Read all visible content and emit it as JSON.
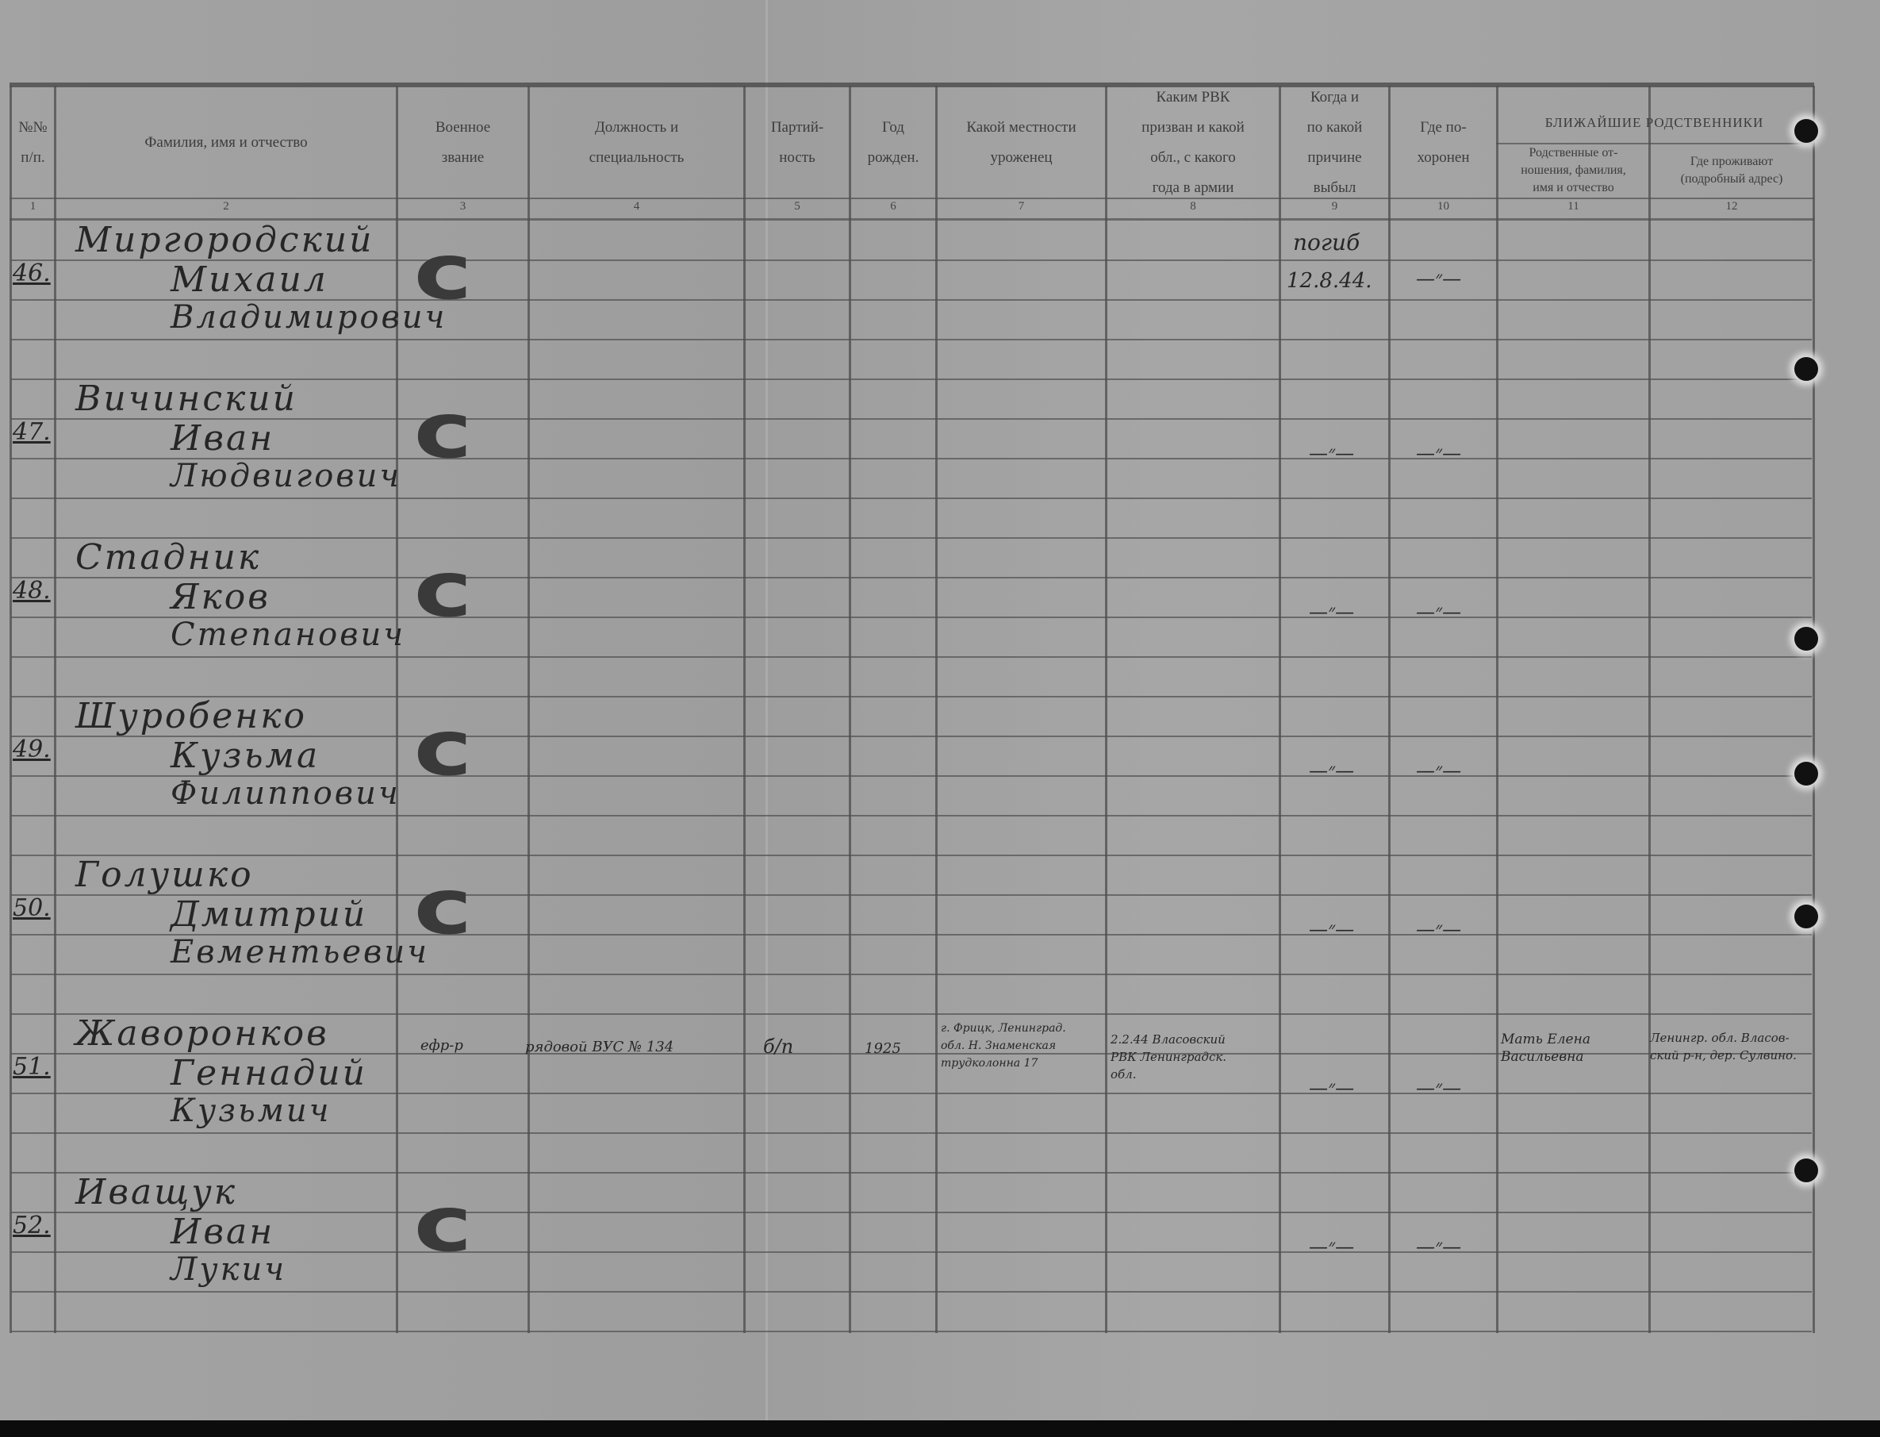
{
  "headers": [
    {
      "label": "№№\nп/п.",
      "num": "1"
    },
    {
      "label": "Фамилия, имя и отчество",
      "num": "2"
    },
    {
      "label": "Военное\nзвание",
      "num": "3"
    },
    {
      "label": "Должность и\nспециальность",
      "num": "4"
    },
    {
      "label": "Партий-\nность",
      "num": "5"
    },
    {
      "label": "Год\nрожден.",
      "num": "6"
    },
    {
      "label": "Какой местности\nуроженец",
      "num": "7"
    },
    {
      "label": "Каким РВК\nпризван и какой\nобл., с какого\nгода в армии",
      "num": "8"
    },
    {
      "label": "Когда и\nпо какой\nпричине\nвыбыл",
      "num": "9"
    },
    {
      "label": "Где по-\nхоронен",
      "num": "10"
    },
    {
      "label": "Родственные от-\nношения, фамилия,\nимя и отчество",
      "num": "11"
    },
    {
      "label": "Где проживают\n(подробный адрес)",
      "num": "12"
    }
  ],
  "group_header": "БЛИЖАЙШИЕ РОДСТВЕННИКИ",
  "rows": [
    {
      "no": "46.",
      "surname": "Миргородский",
      "name": "Михаил",
      "patronymic": "Владимирович",
      "rank": "с",
      "when": "погиб",
      "date": "12.8.44.",
      "buried": "—״—"
    },
    {
      "no": "47.",
      "surname": "Вичинский",
      "name": "Иван",
      "patronymic": "Людвигович",
      "rank": "с",
      "when": "—״—",
      "buried": "—״—"
    },
    {
      "no": "48.",
      "surname": "Стадник",
      "name": "Яков",
      "patronymic": "Степанович",
      "rank": "с",
      "when": "—״—",
      "buried": "—״—"
    },
    {
      "no": "49.",
      "surname": "Шуробенко",
      "name": "Кузьма",
      "patronymic": "Филиппович",
      "rank": "с",
      "when": "—״—",
      "buried": "—״—"
    },
    {
      "no": "50.",
      "surname": "Голушко",
      "name": "Дмитрий",
      "patronymic": "Евментьевич",
      "rank": "с",
      "when": "—״—",
      "buried": "—״—"
    },
    {
      "no": "51.",
      "surname": "Жаворонков",
      "name": "Геннадий",
      "patronymic": "Кузьмич",
      "rank": "ефр-р",
      "position": "рядовой ВУС № 134",
      "party": "б/п",
      "year": "1925",
      "birthplace": "г. Фрицк, Ленинград.\nобл. Н. Знаменская\nтрудколонна 17",
      "rvk": "2.2.44 Власовский\nРВК Ленинградск.\nобл.",
      "when": "—״—",
      "buried": "—״—",
      "relative": "Мать Елена\nВасильевна",
      "address": "Ленингр. обл. Власов-\nский р-н, дер. Сулвино."
    },
    {
      "no": "52.",
      "surname": "Иващук",
      "name": "Иван",
      "patronymic": "Лукич",
      "rank": "с",
      "when": "—״—",
      "buried": "—״—"
    }
  ]
}
